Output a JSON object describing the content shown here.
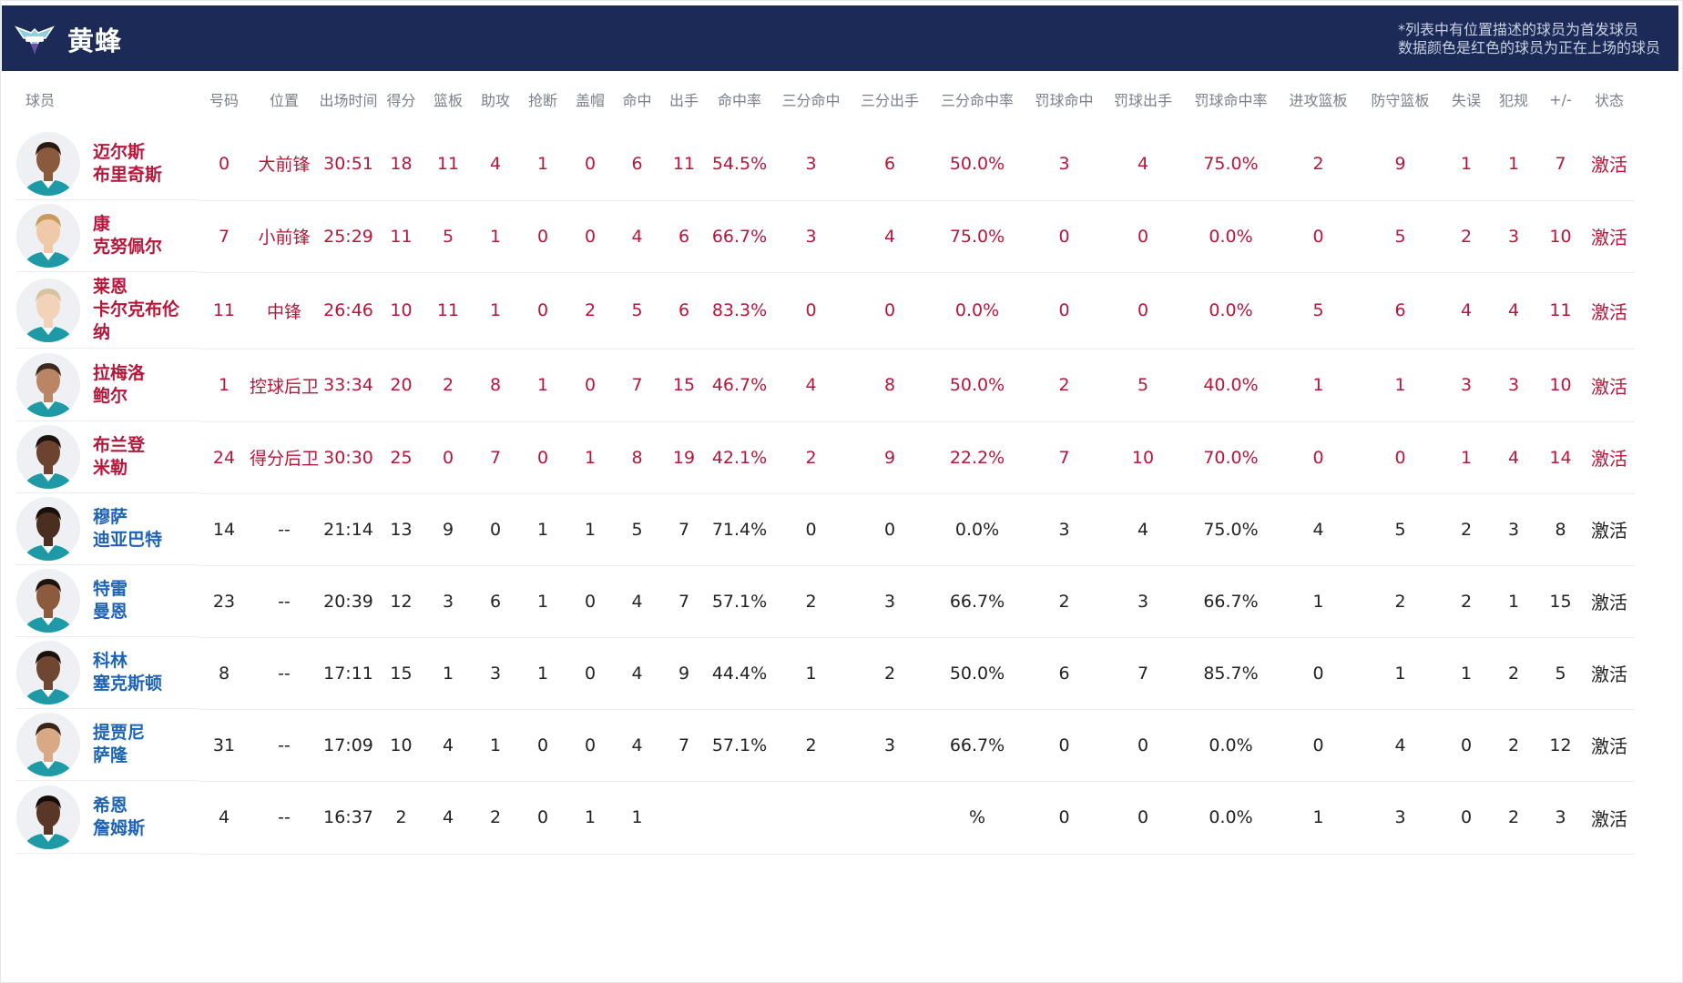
{
  "header": {
    "team_name": "黄蜂",
    "note_line1": "*列表中有位置描述的球员为首发球员",
    "note_line2": "数据颜色是红色的球员为正在上场的球员",
    "colors": {
      "header_bg": "#1b2a56",
      "starter": "#b7163a",
      "bench_name": "#1d63b5"
    }
  },
  "columns": [
    "球员",
    "号码",
    "位置",
    "出场时间",
    "得分",
    "篮板",
    "助攻",
    "抢断",
    "盖帽",
    "命中",
    "出手",
    "命中率",
    "三分命中",
    "三分出手",
    "三分命中率",
    "罚球命中",
    "罚球出手",
    "罚球命中率",
    "进攻篮板",
    "防守篮板",
    "失误",
    "犯规",
    "+/-",
    "状态"
  ],
  "players": [
    {
      "name_line1": "迈尔斯",
      "name_line2": "布里奇斯",
      "name_line3": "",
      "starter": true,
      "skin": "#8a5a3c",
      "hair": "#2a1a12",
      "stats": [
        "0",
        "大前锋",
        "30:51",
        "18",
        "11",
        "4",
        "1",
        "0",
        "6",
        "11",
        "54.5%",
        "3",
        "6",
        "50.0%",
        "3",
        "4",
        "75.0%",
        "2",
        "9",
        "1",
        "1",
        "7",
        "激活"
      ]
    },
    {
      "name_line1": "康",
      "name_line2": "克努佩尔",
      "name_line3": "",
      "starter": true,
      "skin": "#f0c9a8",
      "hair": "#c89a5e",
      "stats": [
        "7",
        "小前锋",
        "25:29",
        "11",
        "5",
        "1",
        "0",
        "0",
        "4",
        "6",
        "66.7%",
        "3",
        "4",
        "75.0%",
        "0",
        "0",
        "0.0%",
        "0",
        "5",
        "2",
        "3",
        "10",
        "激活"
      ]
    },
    {
      "name_line1": "莱恩",
      "name_line2": "卡尔克布伦",
      "name_line3": "纳",
      "starter": true,
      "skin": "#f2d2b8",
      "hair": "#d8c2a0",
      "stats": [
        "11",
        "中锋",
        "26:46",
        "10",
        "11",
        "1",
        "0",
        "2",
        "5",
        "6",
        "83.3%",
        "0",
        "0",
        "0.0%",
        "0",
        "0",
        "0.0%",
        "5",
        "6",
        "4",
        "4",
        "11",
        "激活"
      ]
    },
    {
      "name_line1": "拉梅洛",
      "name_line2": "鲍尔",
      "name_line3": "",
      "starter": true,
      "skin": "#b98565",
      "hair": "#3a2a20",
      "stats": [
        "1",
        "控球后卫",
        "33:34",
        "20",
        "2",
        "8",
        "1",
        "0",
        "7",
        "15",
        "46.7%",
        "4",
        "8",
        "50.0%",
        "2",
        "5",
        "40.0%",
        "1",
        "1",
        "3",
        "3",
        "10",
        "激活"
      ]
    },
    {
      "name_line1": "布兰登",
      "name_line2": "米勒",
      "name_line3": "",
      "starter": true,
      "skin": "#6b4330",
      "hair": "#1c120c",
      "stats": [
        "24",
        "得分后卫",
        "30:30",
        "25",
        "0",
        "7",
        "0",
        "1",
        "8",
        "19",
        "42.1%",
        "2",
        "9",
        "22.2%",
        "7",
        "10",
        "70.0%",
        "0",
        "0",
        "1",
        "4",
        "14",
        "激活"
      ]
    },
    {
      "name_line1": "穆萨",
      "name_line2": "迪亚巴特",
      "name_line3": "",
      "starter": false,
      "skin": "#4a2e20",
      "hair": "#1a100a",
      "stats": [
        "14",
        "--",
        "21:14",
        "13",
        "9",
        "0",
        "1",
        "1",
        "5",
        "7",
        "71.4%",
        "0",
        "0",
        "0.0%",
        "3",
        "4",
        "75.0%",
        "4",
        "5",
        "2",
        "3",
        "8",
        "激活"
      ]
    },
    {
      "name_line1": "特雷",
      "name_line2": "曼恩",
      "name_line3": "",
      "starter": false,
      "skin": "#8c5a3e",
      "hair": "#1e140e",
      "stats": [
        "23",
        "--",
        "20:39",
        "12",
        "3",
        "6",
        "1",
        "0",
        "4",
        "7",
        "57.1%",
        "2",
        "3",
        "66.7%",
        "2",
        "3",
        "66.7%",
        "1",
        "2",
        "2",
        "1",
        "15",
        "激活"
      ]
    },
    {
      "name_line1": "科林",
      "name_line2": "塞克斯顿",
      "name_line3": "",
      "starter": false,
      "skin": "#6e4632",
      "hair": "#1a100a",
      "stats": [
        "8",
        "--",
        "17:11",
        "15",
        "1",
        "3",
        "1",
        "0",
        "4",
        "9",
        "44.4%",
        "1",
        "2",
        "50.0%",
        "6",
        "7",
        "85.7%",
        "0",
        "1",
        "1",
        "2",
        "5",
        "激活"
      ]
    },
    {
      "name_line1": "提贾尼",
      "name_line2": "萨隆",
      "name_line3": "",
      "starter": false,
      "skin": "#d9a885",
      "hair": "#3a2418",
      "stats": [
        "31",
        "--",
        "17:09",
        "10",
        "4",
        "1",
        "0",
        "0",
        "4",
        "7",
        "57.1%",
        "2",
        "3",
        "66.7%",
        "0",
        "0",
        "0.0%",
        "0",
        "4",
        "0",
        "2",
        "12",
        "激活"
      ]
    },
    {
      "name_line1": "希恩",
      "name_line2": "詹姆斯",
      "name_line3": "",
      "starter": false,
      "skin": "#5a3626",
      "hair": "#140c08",
      "stats": [
        "4",
        "--",
        "16:37",
        "2",
        "4",
        "2",
        "0",
        "1",
        "1",
        "",
        "",
        "",
        "",
        "%",
        "0",
        "0",
        "0.0%",
        "1",
        "3",
        "0",
        "2",
        "3",
        "激活"
      ]
    }
  ]
}
